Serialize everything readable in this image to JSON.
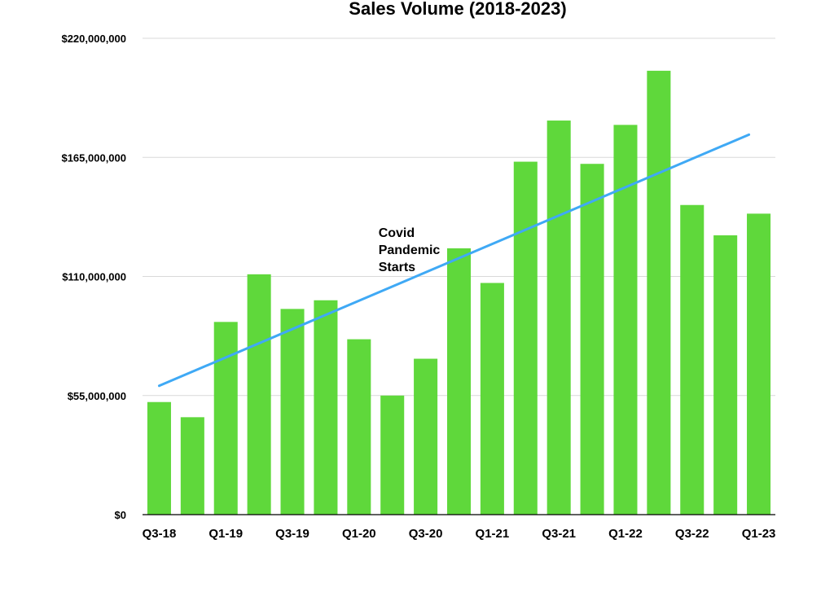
{
  "chart_data": {
    "type": "bar",
    "title": "Sales Volume (2018-2023)",
    "xlabel": "",
    "ylabel": "",
    "ylim": [
      0,
      220000000
    ],
    "yticks": [
      0,
      55000000,
      110000000,
      165000000,
      220000000
    ],
    "ytick_labels": [
      "$0",
      "$55,000,000",
      "$110,000,000",
      "$165,000,000",
      "$220,000,000"
    ],
    "categories": [
      "Q3-18",
      "Q4-18",
      "Q1-19",
      "Q2-19",
      "Q3-19",
      "Q4-19",
      "Q1-20",
      "Q2-20",
      "Q3-20",
      "Q4-20",
      "Q1-21",
      "Q2-21",
      "Q3-21",
      "Q4-21",
      "Q1-22",
      "Q2-22",
      "Q3-22",
      "Q4-22",
      "Q1-23"
    ],
    "xtick_labels": [
      "Q3-18",
      "",
      "Q1-19",
      "",
      "Q3-19",
      "",
      "Q1-20",
      "",
      "Q3-20",
      "",
      "Q1-21",
      "",
      "Q3-21",
      "",
      "Q1-22",
      "",
      "Q3-22",
      "",
      "Q1-23"
    ],
    "values": [
      52000000,
      45000000,
      89000000,
      111000000,
      95000000,
      99000000,
      81000000,
      55000000,
      72000000,
      123000000,
      107000000,
      163000000,
      182000000,
      162000000,
      180000000,
      205000000,
      143000000,
      129000000,
      139000000
    ],
    "bar_color": "#5fd83b",
    "trendline": {
      "type": "linear",
      "color": "#3fa9f5",
      "start": 59500000,
      "end": 175500000
    },
    "annotations": [
      {
        "lines": [
          "Covid",
          "Pandemic",
          "Starts"
        ],
        "x_category": "Q2-20",
        "y_value": 108000000
      }
    ],
    "grid": true,
    "legend": "none"
  }
}
